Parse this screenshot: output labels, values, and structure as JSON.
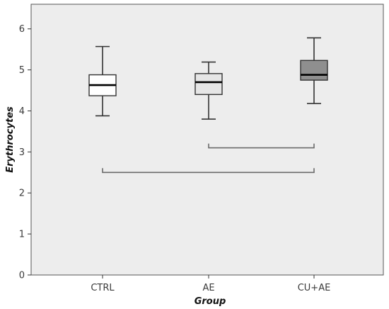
{
  "chart_data": {
    "type": "box",
    "xlabel": "Group",
    "ylabel": "Erythrocytes",
    "ylim": [
      0,
      6.6
    ],
    "yticks": [
      0,
      1,
      2,
      3,
      4,
      5,
      6
    ],
    "grid": false,
    "categories": [
      "CTRL",
      "AE",
      "CU+AE"
    ],
    "boxes": [
      {
        "category": "CTRL",
        "min": 3.88,
        "q1": 4.37,
        "median": 4.63,
        "q3": 4.88,
        "max": 5.57,
        "fill": "#ffffff"
      },
      {
        "category": "AE",
        "min": 3.8,
        "q1": 4.4,
        "median": 4.7,
        "q3": 4.91,
        "max": 5.19,
        "fill": "#e6e6e6"
      },
      {
        "category": "CU+AE",
        "min": 4.18,
        "q1": 4.75,
        "median": 4.88,
        "q3": 5.23,
        "max": 5.78,
        "fill": "#8f8f8f"
      }
    ],
    "brackets": [
      {
        "from": "AE",
        "to": "CU+AE",
        "y": 3.1
      },
      {
        "from": "CTRL",
        "to": "CU+AE",
        "y": 2.5
      }
    ],
    "colors": {
      "plot_background": "#ededed",
      "frame": "#555555",
      "whisker": "#333333",
      "bracket": "#6b6b6b"
    }
  }
}
